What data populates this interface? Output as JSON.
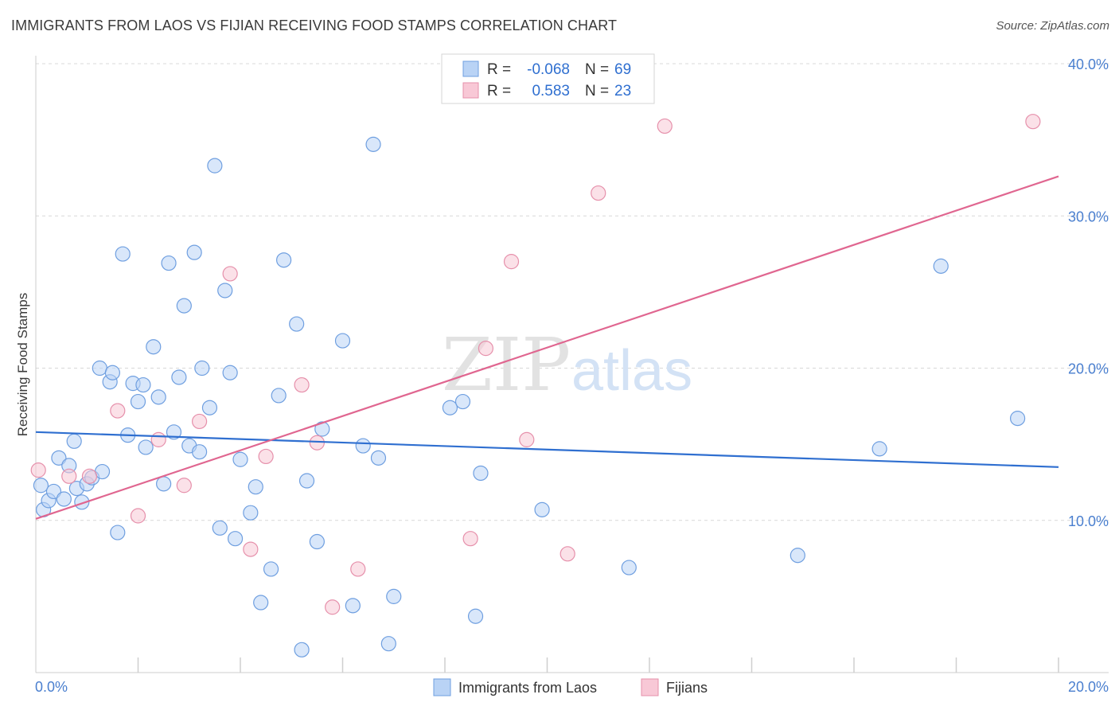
{
  "header": {
    "title": "IMMIGRANTS FROM LAOS VS FIJIAN RECEIVING FOOD STAMPS CORRELATION CHART",
    "source": "Source: ZipAtlas.com"
  },
  "watermark": {
    "zip": "ZIP",
    "atlas": "atlas"
  },
  "legend": {
    "rows": [
      {
        "r_label": "R =",
        "r_value": "-0.068",
        "n_label": "N =",
        "n_value": "69"
      },
      {
        "r_label": "R =",
        "r_value": "0.583",
        "n_label": "N =",
        "n_value": "23"
      }
    ]
  },
  "colors": {
    "blue_fill": "#b9d3f5",
    "blue_stroke": "#6f9fe0",
    "blue_line": "#2f6fd0",
    "pink_fill": "#f8c8d6",
    "pink_stroke": "#e690ab",
    "pink_line": "#e06690",
    "grid": "#d8d8d8",
    "axis_text": "#4a7fcf"
  },
  "chart_data": {
    "type": "scatter",
    "title": "IMMIGRANTS FROM LAOS VS FIJIAN RECEIVING FOOD STAMPS CORRELATION CHART",
    "xlabel": "",
    "ylabel": "Receiving Food Stamps",
    "xlim": [
      0,
      20
    ],
    "ylim": [
      0,
      40
    ],
    "x_tick_labels": [
      "0.0%",
      "20.0%"
    ],
    "y_ticks": [
      10,
      20,
      30,
      40
    ],
    "y_tick_labels": [
      "10.0%",
      "20.0%",
      "30.0%",
      "40.0%"
    ],
    "grid": true,
    "series": [
      {
        "name": "Immigrants from Laos",
        "color": "blue",
        "trend": {
          "x": [
            0,
            20
          ],
          "y": [
            15.8,
            13.5
          ]
        },
        "points": [
          [
            0.1,
            12.3
          ],
          [
            0.15,
            10.7
          ],
          [
            0.25,
            11.3
          ],
          [
            0.35,
            11.9
          ],
          [
            0.45,
            14.1
          ],
          [
            0.55,
            11.4
          ],
          [
            0.65,
            13.6
          ],
          [
            0.75,
            15.2
          ],
          [
            0.8,
            12.1
          ],
          [
            0.9,
            11.2
          ],
          [
            1.0,
            12.4
          ],
          [
            1.1,
            12.8
          ],
          [
            1.3,
            13.2
          ],
          [
            1.25,
            20.0
          ],
          [
            1.45,
            19.1
          ],
          [
            1.5,
            19.7
          ],
          [
            1.6,
            9.2
          ],
          [
            1.7,
            27.5
          ],
          [
            1.8,
            15.6
          ],
          [
            1.9,
            19.0
          ],
          [
            2.0,
            17.8
          ],
          [
            2.1,
            18.9
          ],
          [
            2.15,
            14.8
          ],
          [
            2.3,
            21.4
          ],
          [
            2.4,
            18.1
          ],
          [
            2.5,
            12.4
          ],
          [
            2.6,
            26.9
          ],
          [
            2.7,
            15.8
          ],
          [
            2.8,
            19.4
          ],
          [
            2.9,
            24.1
          ],
          [
            3.0,
            14.9
          ],
          [
            3.1,
            27.6
          ],
          [
            3.2,
            14.5
          ],
          [
            3.25,
            20.0
          ],
          [
            3.4,
            17.4
          ],
          [
            3.5,
            33.3
          ],
          [
            3.6,
            9.5
          ],
          [
            3.7,
            25.1
          ],
          [
            3.8,
            19.7
          ],
          [
            3.9,
            8.8
          ],
          [
            4.0,
            14.0
          ],
          [
            4.2,
            10.5
          ],
          [
            4.3,
            12.2
          ],
          [
            4.4,
            4.6
          ],
          [
            4.6,
            6.8
          ],
          [
            4.75,
            18.2
          ],
          [
            4.85,
            27.1
          ],
          [
            5.1,
            22.9
          ],
          [
            5.2,
            1.5
          ],
          [
            5.3,
            12.6
          ],
          [
            5.5,
            8.6
          ],
          [
            5.6,
            16.0
          ],
          [
            6.0,
            21.8
          ],
          [
            6.2,
            4.4
          ],
          [
            6.4,
            14.9
          ],
          [
            6.6,
            34.7
          ],
          [
            6.7,
            14.1
          ],
          [
            6.9,
            1.9
          ],
          [
            7.0,
            5.0
          ],
          [
            8.1,
            17.4
          ],
          [
            8.35,
            17.8
          ],
          [
            8.6,
            3.7
          ],
          [
            8.7,
            13.1
          ],
          [
            9.9,
            10.7
          ],
          [
            11.6,
            6.9
          ],
          [
            14.9,
            7.7
          ],
          [
            16.5,
            14.7
          ],
          [
            17.7,
            26.7
          ],
          [
            19.2,
            16.7
          ]
        ]
      },
      {
        "name": "Fijians",
        "color": "pink",
        "trend": {
          "x": [
            0,
            20
          ],
          "y": [
            10.1,
            32.6
          ]
        },
        "points": [
          [
            0.05,
            13.3
          ],
          [
            0.65,
            12.9
          ],
          [
            1.05,
            12.9
          ],
          [
            1.6,
            17.2
          ],
          [
            2.0,
            10.3
          ],
          [
            2.4,
            15.3
          ],
          [
            2.9,
            12.3
          ],
          [
            3.2,
            16.5
          ],
          [
            3.8,
            26.2
          ],
          [
            4.2,
            8.1
          ],
          [
            4.5,
            14.2
          ],
          [
            5.2,
            18.9
          ],
          [
            5.5,
            15.1
          ],
          [
            5.8,
            4.3
          ],
          [
            6.3,
            6.8
          ],
          [
            8.5,
            8.8
          ],
          [
            8.8,
            21.3
          ],
          [
            9.3,
            27.0
          ],
          [
            9.6,
            15.3
          ],
          [
            10.4,
            7.8
          ],
          [
            11.0,
            31.5
          ],
          [
            12.3,
            35.9
          ],
          [
            19.5,
            36.2
          ]
        ]
      }
    ]
  },
  "bottom_legend": {
    "items": [
      {
        "label": "Immigrants from Laos",
        "color": "blue"
      },
      {
        "label": "Fijians",
        "color": "pink"
      }
    ]
  }
}
